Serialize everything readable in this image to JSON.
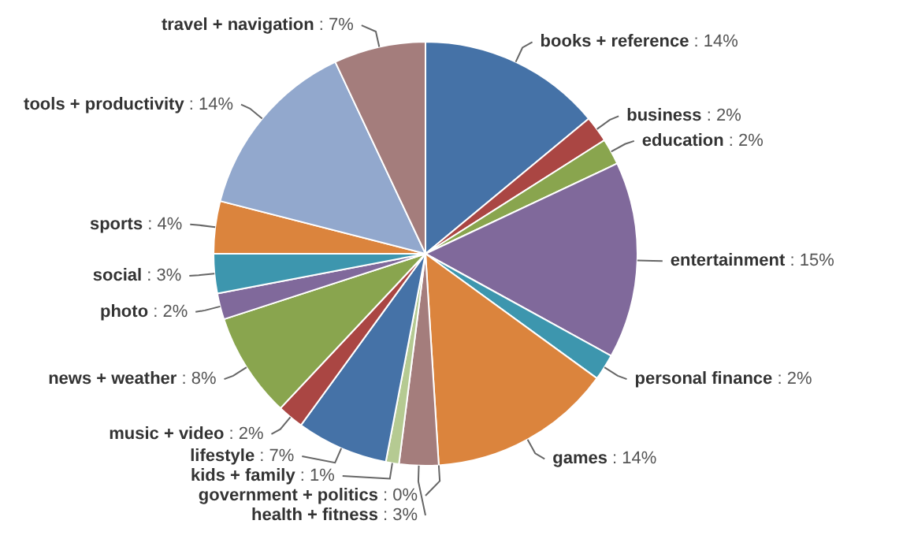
{
  "chart_data": {
    "type": "pie",
    "categories": [
      "books + reference",
      "business",
      "education",
      "entertainment",
      "personal finance",
      "games",
      "government + politics",
      "health + fitness",
      "kids + family",
      "lifestyle",
      "music + video",
      "news + weather",
      "photo",
      "social",
      "sports",
      "tools + productivity",
      "travel + navigation"
    ],
    "values": [
      14,
      2,
      2,
      15,
      2,
      14,
      0,
      3,
      1,
      7,
      2,
      8,
      2,
      3,
      4,
      14,
      7
    ],
    "value_labels": [
      ": 14%",
      ": 2%",
      ": 2%",
      ": 15%",
      ": 2%",
      ": 14%",
      ": 0%",
      ": 3%",
      ": 1%",
      ": 7%",
      ": 2%",
      ": 8%",
      ": 2%",
      ": 3%",
      ": 4%",
      ": 14%",
      ": 7%"
    ],
    "colors": [
      "#4572a7",
      "#aa4643",
      "#89a54e",
      "#80699b",
      "#3d96ae",
      "#db843d",
      "#92a8cd",
      "#a47d7c",
      "#b5ca92",
      "#4572a7",
      "#aa4643",
      "#89a54e",
      "#80699b",
      "#3d96ae",
      "#db843d",
      "#92a8cd",
      "#a47d7c"
    ],
    "legend": false
  }
}
